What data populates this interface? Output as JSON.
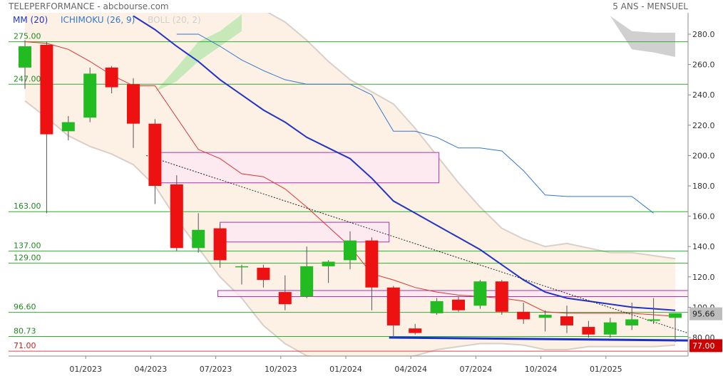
{
  "header": {
    "title": "TELEPERFORMANCE - abcbourse.com",
    "period": "5 ANS - MENSUEL"
  },
  "legend": {
    "mm": "MM (20)",
    "ichimoku": "ICHIMOKU (26, 9)",
    "boll": "BOLL (20, 2)"
  },
  "colors": {
    "up": "#22bb22",
    "down": "#ee1111",
    "mm_line": "#dd3333",
    "tenkan": "#2233cc",
    "kijun": "#3377cc",
    "bollinger": "#d8d0c8",
    "boll_fill": "#fdf1e6",
    "support_line": "#1a2fcc",
    "level_line": "#33aa33",
    "zone_stroke": "#aa33aa",
    "zone_fill": "#fde8f2"
  },
  "chart_data": {
    "type": "candlestick",
    "title": "TELEPERFORMANCE - abcbourse.com",
    "period": "5 ANS - MENSUEL",
    "ylim": [
      70,
      290
    ],
    "y_ticks": [
      "280.0",
      "260.0",
      "240.0",
      "220.0",
      "200.0",
      "180.0",
      "160.0",
      "140.0",
      "120.0",
      "100.0",
      "80.00"
    ],
    "y_tick_values": [
      280,
      260,
      240,
      220,
      200,
      180,
      160,
      140,
      120,
      100,
      80
    ],
    "x_tick_labels": [
      "01/2023",
      "04/2023",
      "07/2023",
      "10/2023",
      "01/2024",
      "04/2024",
      "07/2024",
      "10/2024",
      "01/2025"
    ],
    "x_tick_index": [
      3,
      6,
      9,
      12,
      15,
      18,
      21,
      24,
      27
    ],
    "candles": [
      {
        "o": 258,
        "h": 276,
        "l": 244,
        "c": 272
      },
      {
        "o": 273,
        "h": 275,
        "l": 162,
        "c": 214
      },
      {
        "o": 216,
        "h": 226,
        "l": 210,
        "c": 222
      },
      {
        "o": 225,
        "h": 258,
        "l": 222,
        "c": 254
      },
      {
        "o": 258,
        "h": 259,
        "l": 241,
        "c": 245
      },
      {
        "o": 247,
        "h": 251,
        "l": 205,
        "c": 221
      },
      {
        "o": 221,
        "h": 224,
        "l": 168,
        "c": 180
      },
      {
        "o": 181,
        "h": 187,
        "l": 137,
        "c": 139
      },
      {
        "o": 139,
        "h": 162,
        "l": 136,
        "c": 151
      },
      {
        "o": 152,
        "h": 155,
        "l": 126,
        "c": 131
      },
      {
        "o": 127,
        "h": 128,
        "l": 115,
        "c": 127
      },
      {
        "o": 126,
        "h": 128,
        "l": 113,
        "c": 118
      },
      {
        "o": 110,
        "h": 121,
        "l": 98,
        "c": 102
      },
      {
        "o": 107,
        "h": 140,
        "l": 106,
        "c": 127
      },
      {
        "o": 127,
        "h": 131,
        "l": 116,
        "c": 130
      },
      {
        "o": 131,
        "h": 150,
        "l": 125,
        "c": 144
      },
      {
        "o": 144,
        "h": 146,
        "l": 98,
        "c": 113
      },
      {
        "o": 113,
        "h": 114,
        "l": 80,
        "c": 88
      },
      {
        "o": 86,
        "h": 89,
        "l": 82,
        "c": 83
      },
      {
        "o": 96,
        "h": 106,
        "l": 95,
        "c": 104
      },
      {
        "o": 105,
        "h": 107,
        "l": 97,
        "c": 98
      },
      {
        "o": 101,
        "h": 118,
        "l": 99,
        "c": 117
      },
      {
        "o": 117,
        "h": 118,
        "l": 95,
        "c": 97
      },
      {
        "o": 97,
        "h": 103,
        "l": 89,
        "c": 92
      },
      {
        "o": 93,
        "h": 98,
        "l": 84,
        "c": 95
      },
      {
        "o": 94,
        "h": 101,
        "l": 83,
        "c": 88
      },
      {
        "o": 87,
        "h": 91,
        "l": 80,
        "c": 82
      },
      {
        "o": 82,
        "h": 93,
        "l": 80,
        "c": 90
      },
      {
        "o": 88,
        "h": 103,
        "l": 85,
        "c": 92
      },
      {
        "o": 91,
        "h": 106,
        "l": 89,
        "c": 92
      },
      {
        "o": 93,
        "h": 96,
        "l": 77,
        "c": 96
      }
    ],
    "mm20": [
      275,
      274,
      270,
      262,
      253,
      246,
      246,
      225,
      204,
      198,
      188,
      186,
      178,
      166,
      153,
      140,
      122,
      118,
      113,
      110,
      108,
      107,
      106,
      104,
      97,
      96,
      96,
      96,
      96,
      95,
      94
    ],
    "tenkan": [
      null,
      null,
      null,
      null,
      null,
      292,
      283,
      272,
      262,
      250,
      240,
      230,
      222,
      212,
      205,
      198,
      185,
      170,
      162,
      154,
      146,
      138,
      128,
      118,
      110,
      106,
      104,
      102,
      100,
      99,
      98
    ],
    "kijun": [
      null,
      null,
      null,
      null,
      null,
      null,
      null,
      280,
      280,
      272,
      263,
      256,
      250,
      247,
      247,
      247,
      240,
      216,
      216,
      212,
      205,
      205,
      203,
      190,
      174,
      173,
      173,
      173,
      173,
      162
    ],
    "boll_upper": [
      298,
      303,
      307,
      305,
      304,
      305,
      300,
      296,
      296,
      298,
      302,
      296,
      288,
      276,
      262,
      250,
      242,
      234,
      218,
      200,
      182,
      166,
      152,
      145,
      140,
      142,
      139,
      136,
      136,
      134,
      132
    ],
    "boll_lower": [
      236,
      225,
      213,
      206,
      201,
      194,
      180,
      158,
      139,
      120,
      106,
      88,
      76,
      68,
      66,
      62,
      66,
      66,
      68,
      72,
      74,
      76,
      76,
      75,
      72,
      72,
      74,
      74,
      74,
      74,
      75
    ],
    "cloud_a": [
      {
        "i": 6,
        "v": 242
      },
      {
        "i": 7,
        "v": 258
      },
      {
        "i": 8,
        "v": 275
      },
      {
        "i": 9,
        "v": 282
      },
      {
        "i": 10,
        "v": 293
      }
    ],
    "cloud_b": [
      {
        "i": 6,
        "v": 242
      },
      {
        "i": 7,
        "v": 249
      },
      {
        "i": 8,
        "v": 262
      },
      {
        "i": 9,
        "v": 272
      },
      {
        "i": 10,
        "v": 282
      }
    ],
    "cloud_right_a": [
      {
        "i": 27,
        "v": 292
      },
      {
        "i": 28,
        "v": 282
      },
      {
        "i": 29,
        "v": 281
      },
      {
        "i": 30,
        "v": 281
      }
    ],
    "cloud_right_b": [
      {
        "i": 27,
        "v": 292
      },
      {
        "i": 28,
        "v": 270
      },
      {
        "i": 29,
        "v": 268
      },
      {
        "i": 30,
        "v": 265
      }
    ],
    "levels": [
      {
        "value": 275.0,
        "label": "275.00"
      },
      {
        "value": 247.0,
        "label": "247.00"
      },
      {
        "value": 163.0,
        "label": "163.00"
      },
      {
        "value": 137.0,
        "label": "137.00"
      },
      {
        "value": 129.0,
        "label": "129.00"
      },
      {
        "value": 96.6,
        "label": "96.60"
      },
      {
        "value": 80.73,
        "label": "80.73"
      },
      {
        "value": 71.0,
        "label": "71.00"
      }
    ],
    "zones": [
      {
        "i0": 6.2,
        "i1": 19.1,
        "top": 202,
        "bottom": 182
      },
      {
        "i0": 9.0,
        "i1": 16.8,
        "top": 156,
        "bottom": 143
      },
      {
        "i0": 8.9,
        "i1": 30.9,
        "top": 111,
        "bottom": 107
      }
    ],
    "trendlines": [
      {
        "style": "dotted",
        "i0": 5.6,
        "v0": 200,
        "i1": 31.0,
        "v1": 81
      },
      {
        "style": "support",
        "i0": 16.8,
        "v0": 80,
        "i1": 31.0,
        "v1": 78
      }
    ],
    "last_price": "95.66",
    "alert_price": "77.00"
  }
}
